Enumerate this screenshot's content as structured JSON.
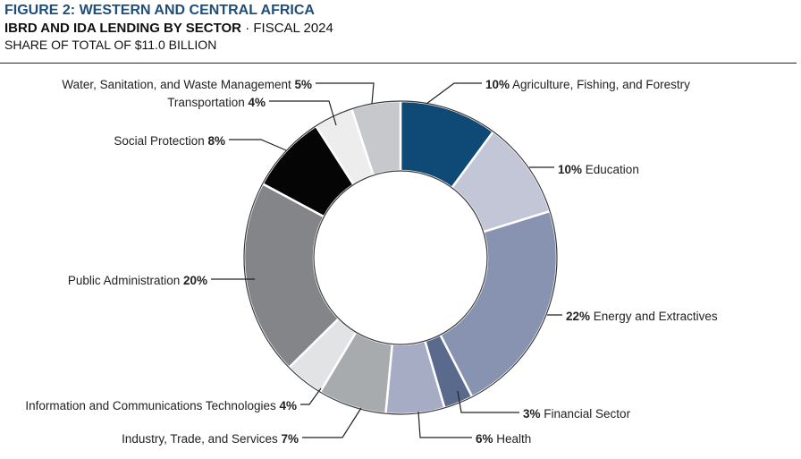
{
  "header": {
    "figure_label": "FIGURE 2: WESTERN AND CENTRAL AFRICA",
    "subtitle_bold": "IBRD AND IDA LENDING BY SECTOR",
    "subtitle_sep": " · ",
    "subtitle_rest": "FISCAL 2024",
    "share_line": "SHARE OF TOTAL OF $11.0 BILLION"
  },
  "colors": {
    "Agriculture": "#0e4a75",
    "Education": "#c3c6d6",
    "Energy": "#8793b0",
    "Financial": "#5a6a8c",
    "Health": "#a6acc4",
    "Industry": "#a8abae",
    "ICT": "#e2e3e5",
    "PublicAdmin": "#838589",
    "SocialProtection": "#050505",
    "Transportation": "#ededed",
    "Water": "#c6c8cb"
  },
  "chart_data": {
    "type": "pie",
    "variant": "donut",
    "start": "12 o'clock, clockwise",
    "slices": [
      {
        "label": "Agriculture, Fishing, and Forestry",
        "value": 10,
        "value_label": "10%",
        "color_key": "Agriculture"
      },
      {
        "label": "Education",
        "value": 10,
        "value_label": "10%",
        "color_key": "Education"
      },
      {
        "label": "Energy and Extractives",
        "value": 22,
        "value_label": "22%",
        "color_key": "Energy"
      },
      {
        "label": "Financial Sector",
        "value": 3,
        "value_label": "3%",
        "color_key": "Financial"
      },
      {
        "label": "Health",
        "value": 6,
        "value_label": "6%",
        "color_key": "Health"
      },
      {
        "label": "Industry, Trade, and Services",
        "value": 7,
        "value_label": "7%",
        "color_key": "Industry"
      },
      {
        "label": "Information and Communications Technologies",
        "value": 4,
        "value_label": "4%",
        "color_key": "ICT"
      },
      {
        "label": "Public Administration",
        "value": 20,
        "value_label": "20%",
        "color_key": "PublicAdmin"
      },
      {
        "label": "Social Protection",
        "value": 8,
        "value_label": "8%",
        "color_key": "SocialProtection"
      },
      {
        "label": "Transportation",
        "value": 4,
        "value_label": "4%",
        "color_key": "Transportation"
      },
      {
        "label": "Water, Sanitation, and Waste Management",
        "value": 5,
        "value_label": "5%",
        "color_key": "Water"
      }
    ]
  }
}
